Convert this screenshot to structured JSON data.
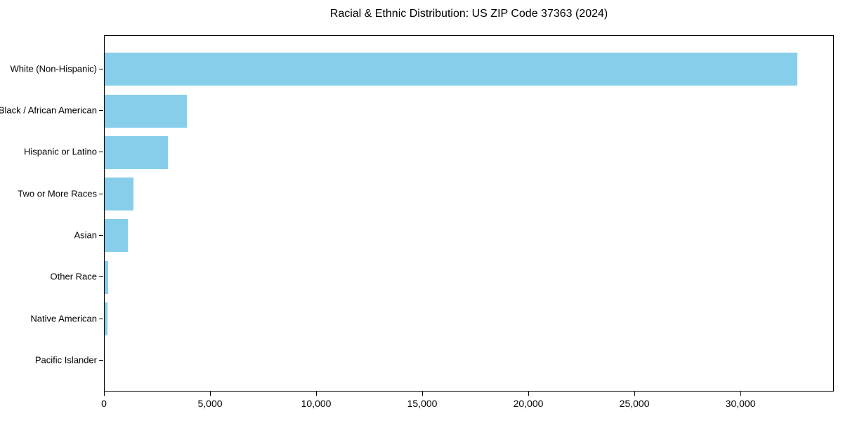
{
  "figure": {
    "background": "#ffffff",
    "frame_color": "#000000",
    "text_color": "#000000"
  },
  "chart_data": {
    "type": "bar",
    "orientation": "horizontal",
    "title": "Racial & Ethnic Distribution: US ZIP Code 37363 (2024)",
    "categories": [
      "White (Non-Hispanic)",
      "Black / African American",
      "Hispanic or Latino",
      "Two or More Races",
      "Asian",
      "Other Race",
      "Native American",
      "Pacific Islander"
    ],
    "values": [
      32700,
      3870,
      2980,
      1370,
      1080,
      180,
      120,
      0
    ],
    "bar_color": "#87CEEB",
    "xlabel": "",
    "ylabel": "",
    "xlim": [
      0,
      34400
    ],
    "x_ticks": [
      0,
      5000,
      10000,
      15000,
      20000,
      25000,
      30000
    ],
    "x_tick_labels": [
      "0",
      "5,000",
      "10,000",
      "15,000",
      "20,000",
      "25,000",
      "30,000"
    ],
    "grid": false,
    "legend_position": "none"
  }
}
